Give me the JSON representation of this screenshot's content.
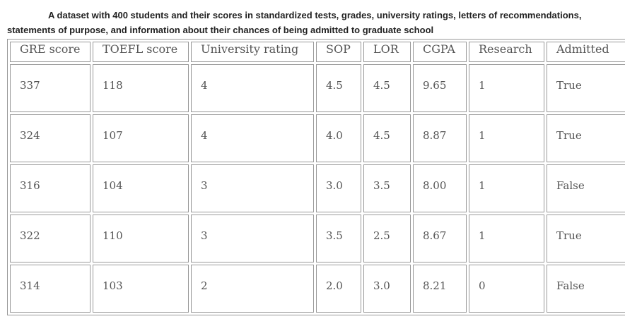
{
  "caption": "A dataset with 400 students and their scores in standardized tests, grades, university ratings, letters of recommendations, statements of purpose, and information about their chances of being admitted to graduate school",
  "table": {
    "header": [
      "GRE score",
      "TOEFL score",
      "University rating",
      "SOP",
      "LOR",
      "CGPA",
      "Research",
      "Admitted"
    ],
    "rows": [
      [
        "337",
        "118",
        "4",
        "4.5",
        "4.5",
        "9.65",
        "1",
        "True"
      ],
      [
        "324",
        "107",
        "4",
        "4.0",
        "4.5",
        "8.87",
        "1",
        "True"
      ],
      [
        "316",
        "104",
        "3",
        "3.0",
        "3.5",
        "8.00",
        "1",
        "False"
      ],
      [
        "322",
        "110",
        "3",
        "3.5",
        "2.5",
        "8.67",
        "1",
        "True"
      ],
      [
        "314",
        "103",
        "2",
        "2.0",
        "3.0",
        "8.21",
        "0",
        "False"
      ]
    ]
  }
}
